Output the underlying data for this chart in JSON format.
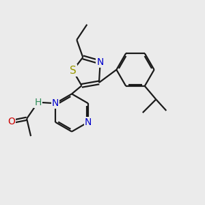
{
  "bg_color": "#ebebeb",
  "line_color": "#1a1a1a",
  "bond_width": 1.6,
  "atom_colors": {
    "N": "#0000cc",
    "S": "#999900",
    "O": "#cc0000",
    "H": "#2e8b57",
    "C": "#1a1a1a"
  },
  "font_size": 10,
  "figsize": [
    3.0,
    3.0
  ],
  "dpi": 100
}
